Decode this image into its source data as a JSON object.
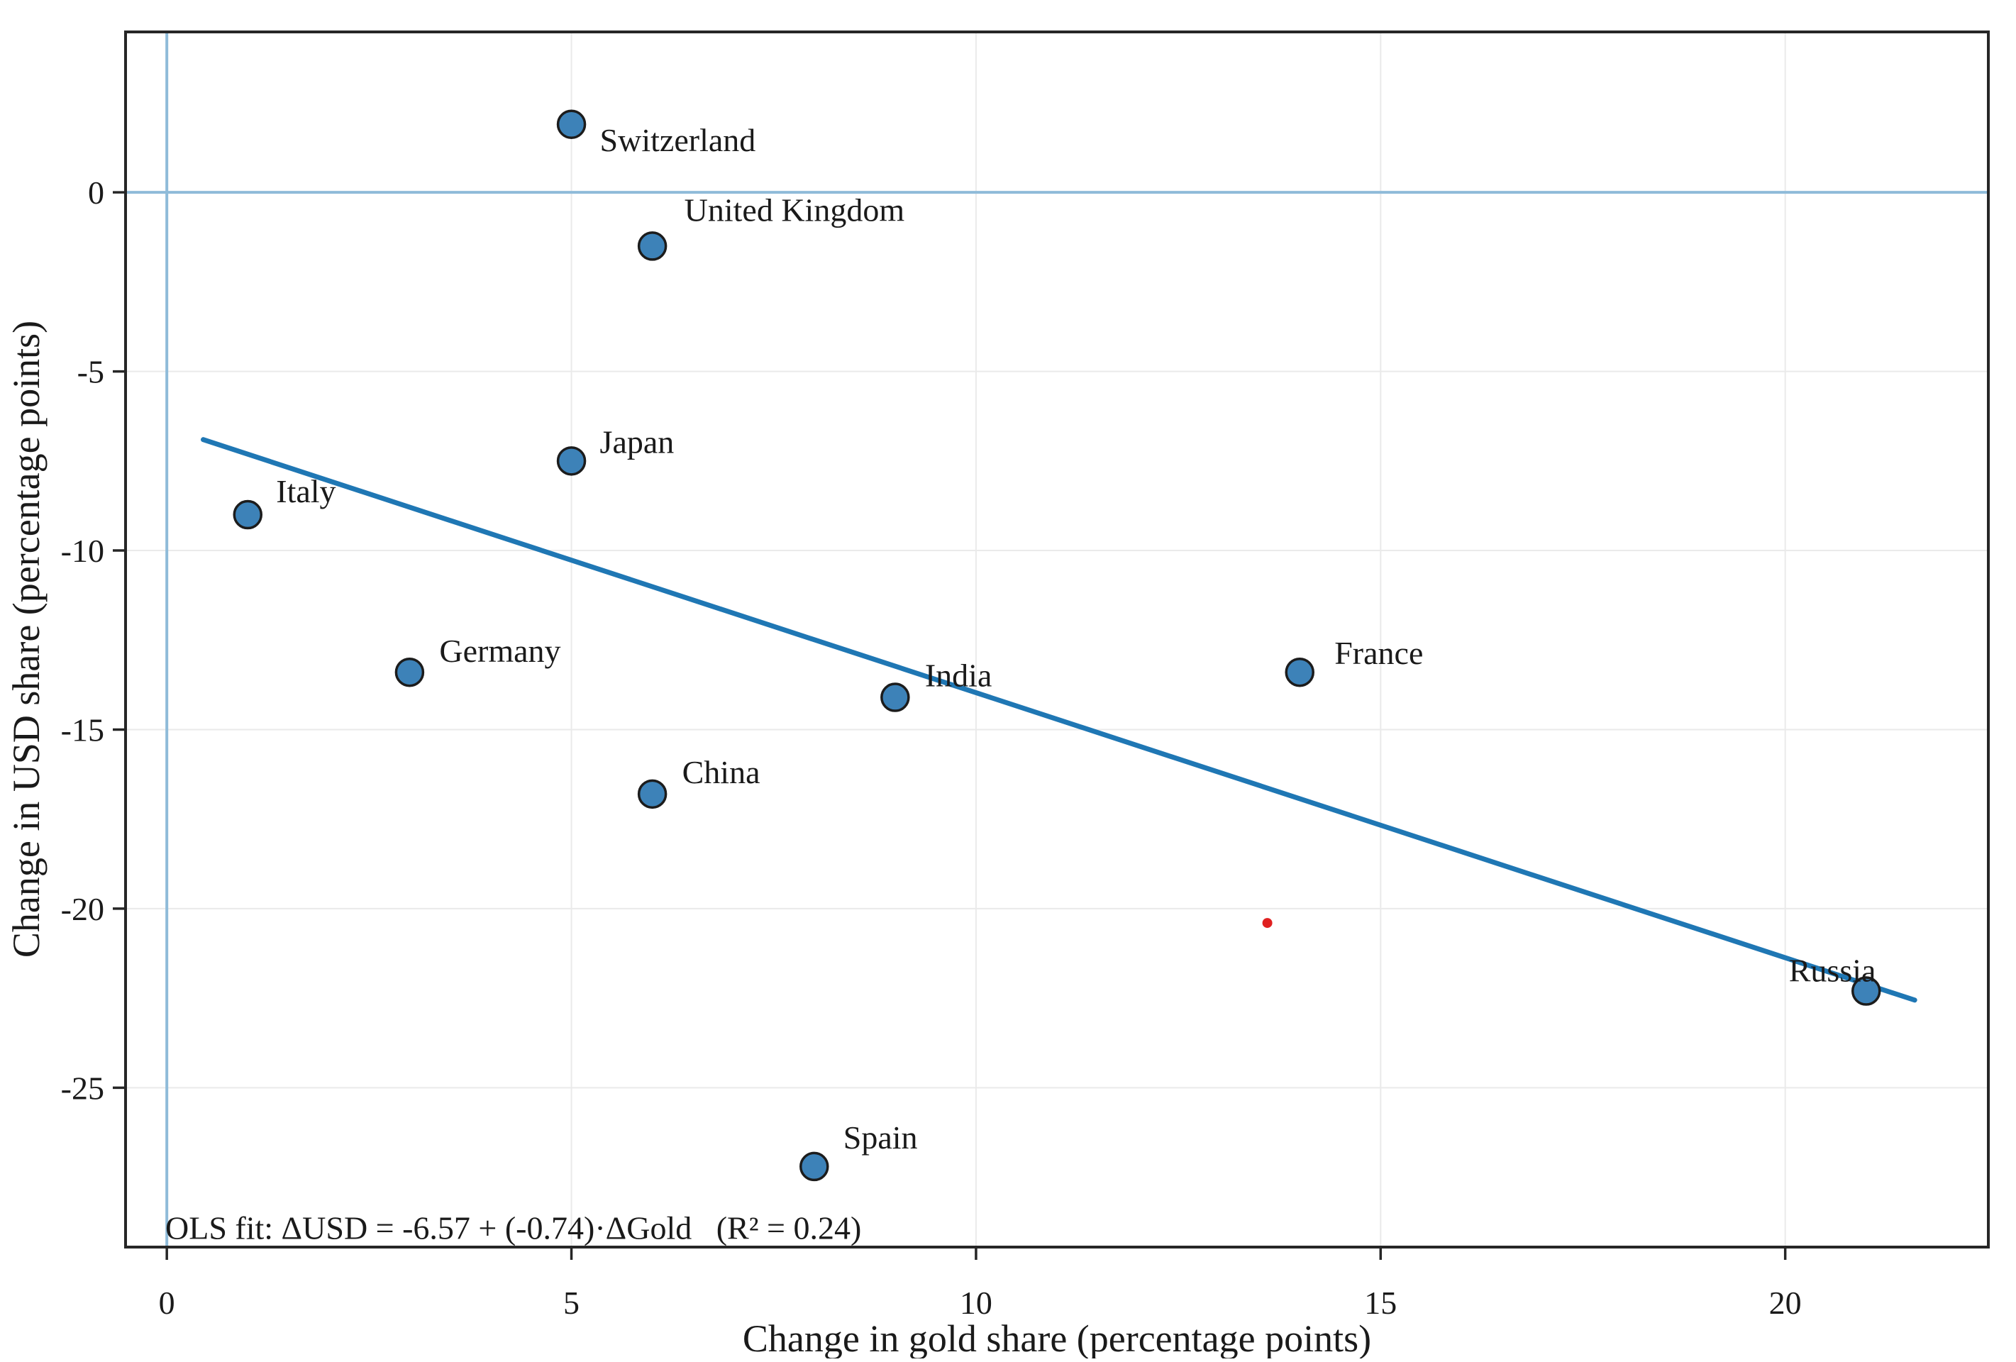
{
  "chart_data": {
    "type": "scatter",
    "title": "",
    "xlabel": "Change in gold share (percentage points)",
    "ylabel": "Change in USD share (percentage points)",
    "xlim": [
      -0.51,
      22.51
    ],
    "ylim": [
      -29.45,
      4.48
    ],
    "xticks": [
      0,
      5,
      10,
      15,
      20
    ],
    "yticks": [
      0,
      -5,
      -10,
      -15,
      -20,
      -25
    ],
    "grid": true,
    "legend_position": "none",
    "points": [
      {
        "label": "Switzerland",
        "x": 5,
        "y": 1.9
      },
      {
        "label": "United Kingdom",
        "x": 6,
        "y": -1.5
      },
      {
        "label": "Japan",
        "x": 5,
        "y": -7.5
      },
      {
        "label": "Italy",
        "x": 1,
        "y": -9.0
      },
      {
        "label": "Germany",
        "x": 3,
        "y": -13.4
      },
      {
        "label": "India",
        "x": 9,
        "y": -14.1
      },
      {
        "label": "France",
        "x": 14,
        "y": -13.4
      },
      {
        "label": "China",
        "x": 6,
        "y": -16.8
      },
      {
        "label": "Spain",
        "x": 8,
        "y": -27.2
      },
      {
        "label": "Russia",
        "x": 21,
        "y": -22.3
      }
    ],
    "extra_point": {
      "x": 13.6,
      "y": -20.4,
      "color": "#e02020"
    },
    "trendline": {
      "slope": -0.74,
      "intercept": -6.57,
      "x_start": 0.45,
      "x_end": 21.6,
      "r_squared": 0.24,
      "color": "#1f77b4"
    },
    "annotation": "OLS fit: ΔUSD = -6.57 + (-0.74)·ΔGold   (R² = 0.24)",
    "colors": {
      "marker_fill": "#3d82b8",
      "marker_edge": "#1c1c1c",
      "grid": "#eaeaea",
      "spine": "#262626",
      "text": "#1a1a1a",
      "zero_line": "#8fbbd9"
    }
  }
}
